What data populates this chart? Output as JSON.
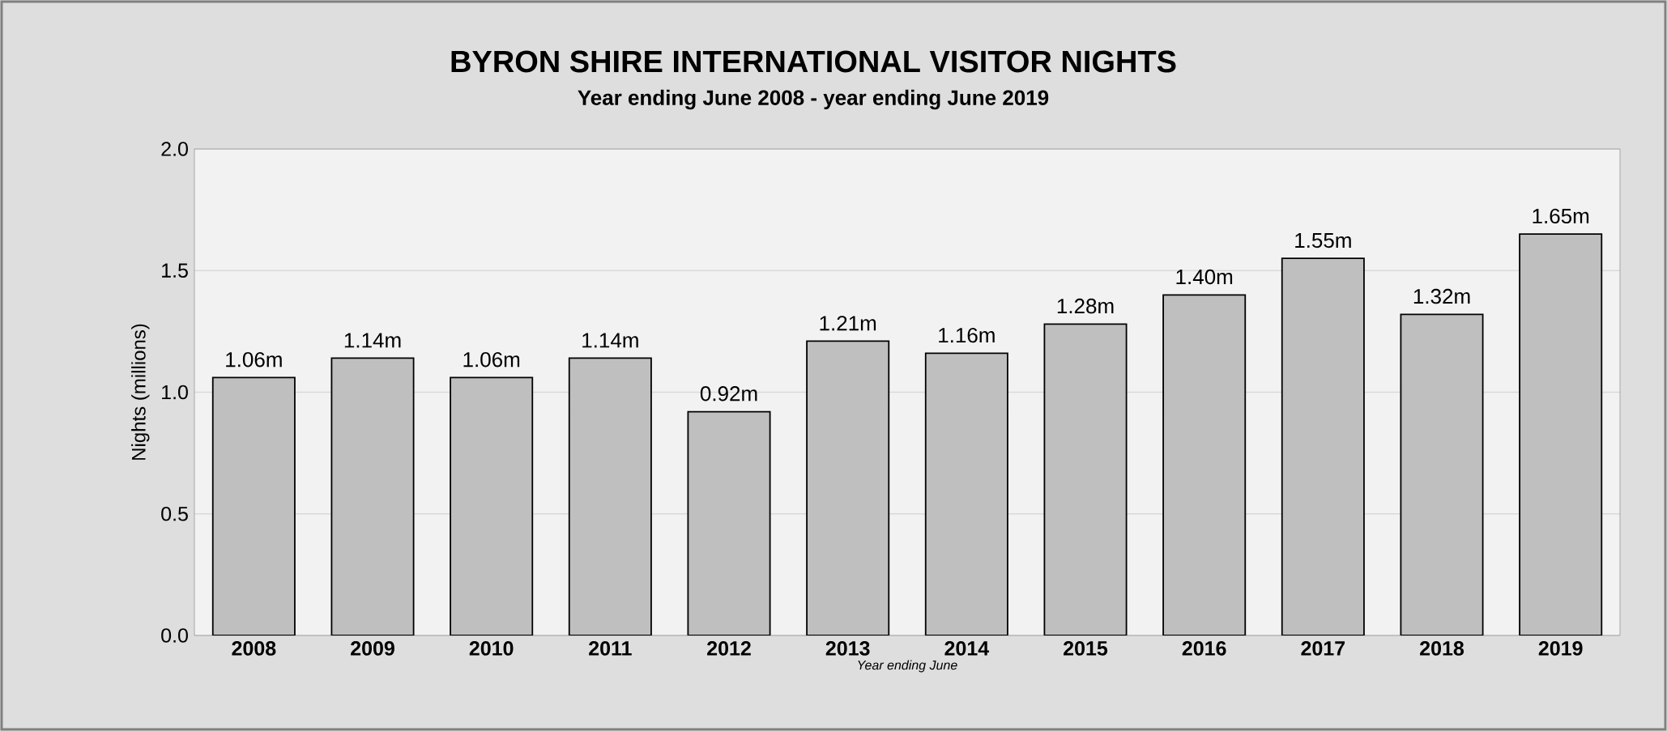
{
  "chart_data": {
    "type": "bar",
    "title": "BYRON SHIRE INTERNATIONAL VISITOR NIGHTS",
    "subtitle": "Year ending June 2008 - year ending June 2019",
    "xlabel": "Year ending June",
    "ylabel": "Nights (millions)",
    "categories": [
      "2008",
      "2009",
      "2010",
      "2011",
      "2012",
      "2013",
      "2014",
      "2015",
      "2016",
      "2017",
      "2018",
      "2019"
    ],
    "values": [
      1.06,
      1.14,
      1.06,
      1.14,
      0.92,
      1.21,
      1.16,
      1.28,
      1.4,
      1.55,
      1.32,
      1.65
    ],
    "value_labels": [
      "1.06m",
      "1.14m",
      "1.06m",
      "1.14m",
      "0.92m",
      "1.21m",
      "1.16m",
      "1.28m",
      "1.40m",
      "1.55m",
      "1.32m",
      "1.65m"
    ],
    "color": "#bfbfbf",
    "ylim": [
      0,
      2
    ],
    "yticks": [
      {
        "value": 0,
        "label": "0.0"
      },
      {
        "value": 0.5,
        "label": "0.5"
      },
      {
        "value": 1,
        "label": "1.0"
      },
      {
        "value": 1.5,
        "label": "1.5"
      },
      {
        "value": 2,
        "label": "2.0"
      }
    ],
    "grid": "y"
  }
}
